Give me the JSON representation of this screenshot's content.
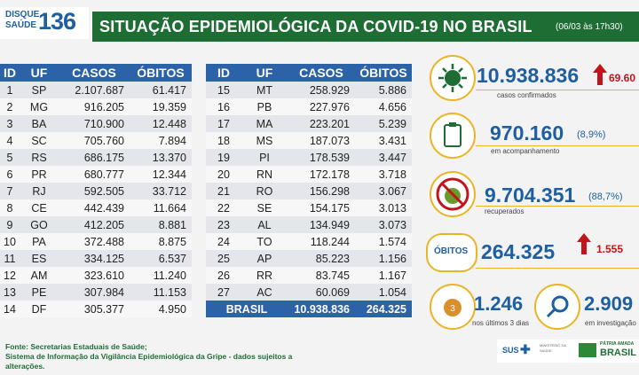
{
  "header": {
    "logo_top": "DISQUE",
    "logo_bottom": "SAÚDE",
    "logo_number": "136",
    "title": "SITUAÇÃO EPIDEMIOLÓGICA DA COVID-19 NO BRASIL",
    "timestamp": "(06/03 às 17h30)"
  },
  "table": {
    "columns": [
      "ID",
      "UF",
      "CASOS",
      "ÓBITOS"
    ],
    "left_rows": [
      [
        "1",
        "SP",
        "2.107.687",
        "61.417"
      ],
      [
        "2",
        "MG",
        "916.205",
        "19.359"
      ],
      [
        "3",
        "BA",
        "710.900",
        "12.448"
      ],
      [
        "4",
        "SC",
        "705.760",
        "7.894"
      ],
      [
        "5",
        "RS",
        "686.175",
        "13.370"
      ],
      [
        "6",
        "PR",
        "680.777",
        "12.344"
      ],
      [
        "7",
        "RJ",
        "592.505",
        "33.712"
      ],
      [
        "8",
        "CE",
        "442.439",
        "11.664"
      ],
      [
        "9",
        "GO",
        "412.205",
        "8.881"
      ],
      [
        "10",
        "PA",
        "372.488",
        "8.875"
      ],
      [
        "11",
        "ES",
        "334.125",
        "6.537"
      ],
      [
        "12",
        "AM",
        "323.610",
        "11.240"
      ],
      [
        "13",
        "PE",
        "307.984",
        "11.153"
      ],
      [
        "14",
        "DF",
        "305.377",
        "4.950"
      ]
    ],
    "right_rows": [
      [
        "15",
        "MT",
        "258.929",
        "5.886"
      ],
      [
        "16",
        "PB",
        "227.976",
        "4.656"
      ],
      [
        "17",
        "MA",
        "223.201",
        "5.239"
      ],
      [
        "18",
        "MS",
        "187.073",
        "3.431"
      ],
      [
        "19",
        "PI",
        "178.539",
        "3.447"
      ],
      [
        "20",
        "RN",
        "172.178",
        "3.718"
      ],
      [
        "21",
        "RO",
        "156.298",
        "3.067"
      ],
      [
        "22",
        "SE",
        "154.175",
        "3.013"
      ],
      [
        "23",
        "AL",
        "134.949",
        "3.073"
      ],
      [
        "24",
        "TO",
        "118.244",
        "1.574"
      ],
      [
        "25",
        "AP",
        "85.223",
        "1.156"
      ],
      [
        "26",
        "RR",
        "83.745",
        "1.167"
      ],
      [
        "27",
        "AC",
        "60.069",
        "1.054"
      ]
    ],
    "total": {
      "label": "BRASIL",
      "casos": "10.938.836",
      "obitos": "264.325"
    }
  },
  "stats": {
    "confirmed": {
      "value": "10.938.836",
      "label": "casos confirmados",
      "increase": "69.60",
      "icon": "virus-icon"
    },
    "monitoring": {
      "value": "970.160",
      "pct": "(8,9%)",
      "label": "em acompanhamento",
      "icon": "clipboard-icon"
    },
    "recovered": {
      "value": "9.704.351",
      "pct": "(88,7%)",
      "label": "recuperados",
      "icon": "no-virus-icon"
    },
    "deaths": {
      "badge": "ÓBITOS",
      "value": "264.325",
      "increase": "1.555"
    },
    "last3": {
      "value": "1.246",
      "label": "nos últimos 3 dias",
      "icon": "calendar-icon"
    },
    "investigation": {
      "value": "2.909",
      "label": "em investigação",
      "icon": "magnifier-icon"
    }
  },
  "footer": {
    "line1": "Fonte: Secretarias Estaduais de Saúde;",
    "line2": "Sistema de Informação da Vigilância Epidemiológica da Gripe - dados sujeitos a",
    "line3": "alterações.",
    "sus": "SUS",
    "ministry": "MINISTÉRIO DA SAÚDE",
    "gov_top": "PÁTRIA AMADA",
    "gov_bottom": "BRASIL"
  },
  "colors": {
    "green": "#1e6d35",
    "blue": "#2c62a8",
    "yellow": "#e9b526",
    "red": "#c2151b"
  }
}
